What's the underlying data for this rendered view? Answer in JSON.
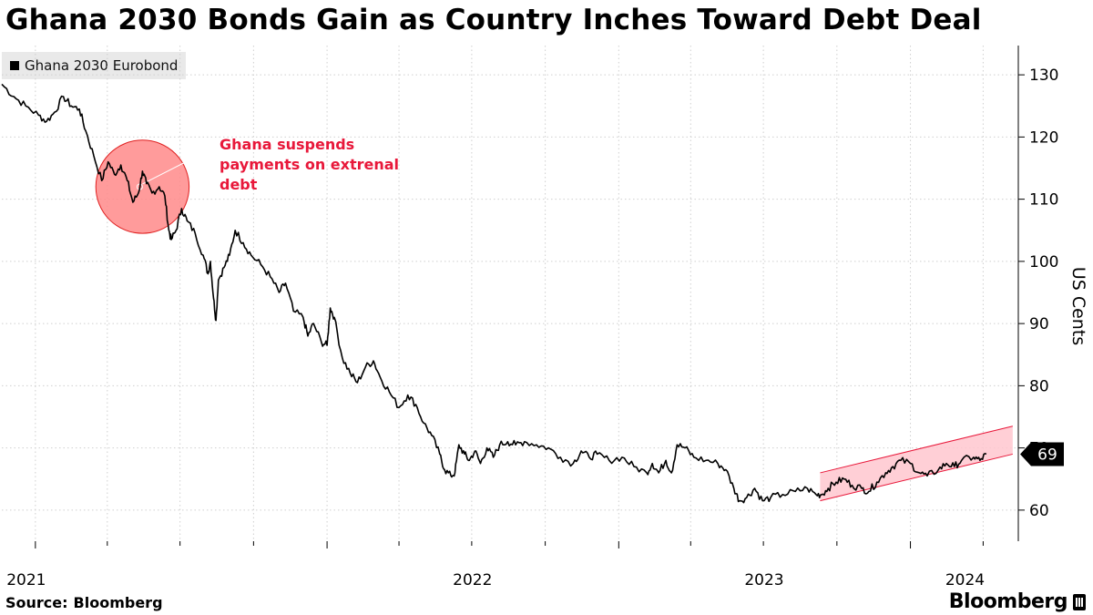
{
  "title": "Ghana 2030 Bonds Gain as Country Inches Toward Debt Deal",
  "source_label": "Source:",
  "source_value": "Bloomberg",
  "brand": "Bloomberg",
  "chart_data": {
    "type": "line",
    "ylabel": "US Cents",
    "ylim": [
      55,
      135
    ],
    "yticks": [
      60,
      70,
      80,
      90,
      100,
      110,
      120,
      130
    ],
    "xlim": [
      "2020-11-20",
      "2024-05-15"
    ],
    "x_tick_years": [
      "2021",
      "2022",
      "2023",
      "2024"
    ],
    "grid": {
      "vertical": true,
      "horizontal": true,
      "style": "dotted"
    },
    "legend": {
      "position": "top-left",
      "entries": [
        "Ghana 2030 Eurobond"
      ]
    },
    "last_value": {
      "label": "69",
      "value": 69
    },
    "series": [
      {
        "name": "Ghana 2030 Eurobond",
        "color": "#000000",
        "points": [
          [
            "2020-11-20",
            128.5
          ],
          [
            "2020-12-05",
            126.5
          ],
          [
            "2020-12-20",
            125.0
          ],
          [
            "2021-01-05",
            123.5
          ],
          [
            "2021-01-15",
            122.5
          ],
          [
            "2021-01-25",
            124.0
          ],
          [
            "2021-02-05",
            126.5
          ],
          [
            "2021-02-15",
            125.0
          ],
          [
            "2021-02-25",
            124.5
          ],
          [
            "2021-03-05",
            121.0
          ],
          [
            "2021-03-15",
            117.0
          ],
          [
            "2021-03-25",
            113.0
          ],
          [
            "2021-04-02",
            116.0
          ],
          [
            "2021-04-10",
            114.0
          ],
          [
            "2021-04-18",
            115.5
          ],
          [
            "2021-04-26",
            113.0
          ],
          [
            "2021-05-03",
            109.5
          ],
          [
            "2021-05-10",
            111.0
          ],
          [
            "2021-05-15",
            114.5
          ],
          [
            "2021-05-20",
            112.5
          ],
          [
            "2021-05-27",
            111.0
          ],
          [
            "2021-06-05",
            112.0
          ],
          [
            "2021-06-12",
            110.5
          ],
          [
            "2021-06-17",
            105.0
          ],
          [
            "2021-06-20",
            103.5
          ],
          [
            "2021-06-26",
            105.0
          ],
          [
            "2021-07-03",
            108.5
          ],
          [
            "2021-07-10",
            106.5
          ],
          [
            "2021-07-20",
            104.5
          ],
          [
            "2021-07-30",
            101.0
          ],
          [
            "2021-08-05",
            98.0
          ],
          [
            "2021-08-08",
            100.0
          ],
          [
            "2021-08-12",
            94.0
          ],
          [
            "2021-08-15",
            90.5
          ],
          [
            "2021-08-18",
            97.0
          ],
          [
            "2021-08-25",
            99.0
          ],
          [
            "2021-09-01",
            101.0
          ],
          [
            "2021-09-08",
            105.0
          ],
          [
            "2021-09-18",
            103.0
          ],
          [
            "2021-09-28",
            101.0
          ],
          [
            "2021-10-10",
            99.5
          ],
          [
            "2021-10-22",
            97.5
          ],
          [
            "2021-11-02",
            95.0
          ],
          [
            "2021-11-10",
            96.5
          ],
          [
            "2021-11-20",
            92.0
          ],
          [
            "2021-12-02",
            91.0
          ],
          [
            "2021-12-08",
            88.0
          ],
          [
            "2021-12-15",
            90.0
          ],
          [
            "2021-12-25",
            87.0
          ],
          [
            "2022-01-01",
            86.5
          ],
          [
            "2022-01-05",
            92.5
          ],
          [
            "2022-01-10",
            91.0
          ],
          [
            "2022-01-20",
            84.5
          ],
          [
            "2022-01-30",
            82.0
          ],
          [
            "2022-02-08",
            80.5
          ],
          [
            "2022-02-18",
            83.0
          ],
          [
            "2022-02-28",
            84.0
          ],
          [
            "2022-03-08",
            81.5
          ],
          [
            "2022-03-20",
            79.0
          ],
          [
            "2022-04-01",
            76.5
          ],
          [
            "2022-04-12",
            78.5
          ],
          [
            "2022-04-22",
            77.0
          ],
          [
            "2022-05-02",
            74.0
          ],
          [
            "2022-05-12",
            72.0
          ],
          [
            "2022-05-22",
            69.0
          ],
          [
            "2022-05-28",
            66.5
          ],
          [
            "2022-06-05",
            65.5
          ],
          [
            "2022-06-10",
            66.0
          ],
          [
            "2022-06-15",
            70.5
          ],
          [
            "2022-06-22",
            69.0
          ],
          [
            "2022-06-28",
            68.0
          ],
          [
            "2022-07-05",
            69.5
          ],
          [
            "2022-07-12",
            67.5
          ],
          [
            "2022-07-20",
            70.0
          ],
          [
            "2022-07-28",
            68.5
          ],
          [
            "2022-08-05",
            70.5
          ],
          [
            "2022-08-15",
            71.0
          ],
          [
            "2022-08-25",
            70.5
          ],
          [
            "2022-09-05",
            71.0
          ],
          [
            "2022-09-20",
            70.5
          ],
          [
            "2022-10-05",
            70.0
          ],
          [
            "2022-10-20",
            68.5
          ],
          [
            "2022-11-05",
            67.5
          ],
          [
            "2022-11-15",
            69.5
          ],
          [
            "2022-11-25",
            68.5
          ],
          [
            "2022-12-05",
            69.0
          ],
          [
            "2022-12-20",
            68.0
          ],
          [
            "2023-01-05",
            68.5
          ],
          [
            "2023-01-20",
            67.0
          ],
          [
            "2023-02-05",
            66.0
          ],
          [
            "2023-02-12",
            67.5
          ],
          [
            "2023-02-20",
            66.0
          ],
          [
            "2023-03-01",
            68.0
          ],
          [
            "2023-03-08",
            66.0
          ],
          [
            "2023-03-15",
            70.5
          ],
          [
            "2023-03-25",
            70.0
          ],
          [
            "2023-04-05",
            68.5
          ],
          [
            "2023-04-20",
            68.0
          ],
          [
            "2023-05-05",
            67.5
          ],
          [
            "2023-05-15",
            66.5
          ],
          [
            "2023-05-25",
            63.5
          ],
          [
            "2023-06-01",
            61.5
          ],
          [
            "2023-06-10",
            62.0
          ],
          [
            "2023-06-20",
            63.5
          ],
          [
            "2023-06-30",
            61.5
          ],
          [
            "2023-07-10",
            62.0
          ],
          [
            "2023-07-25",
            62.5
          ],
          [
            "2023-08-10",
            63.0
          ],
          [
            "2023-08-25",
            63.5
          ],
          [
            "2023-09-05",
            62.5
          ],
          [
            "2023-09-12",
            62.5
          ],
          [
            "2023-09-20",
            63.5
          ],
          [
            "2023-09-30",
            64.5
          ],
          [
            "2023-10-10",
            65.0
          ],
          [
            "2023-10-20",
            64.0
          ],
          [
            "2023-11-01",
            63.5
          ],
          [
            "2023-11-10",
            63.0
          ],
          [
            "2023-11-20",
            64.5
          ],
          [
            "2023-12-01",
            66.0
          ],
          [
            "2023-12-10",
            67.0
          ],
          [
            "2023-12-20",
            68.0
          ],
          [
            "2024-01-01",
            67.5
          ],
          [
            "2024-01-12",
            66.0
          ],
          [
            "2024-01-22",
            65.5
          ],
          [
            "2024-02-05",
            66.5
          ],
          [
            "2024-02-15",
            67.5
          ],
          [
            "2024-02-25",
            67.0
          ],
          [
            "2024-03-05",
            68.0
          ],
          [
            "2024-03-20",
            68.5
          ],
          [
            "2024-03-28",
            68.0
          ],
          [
            "2024-04-05",
            69.0
          ]
        ]
      }
    ],
    "annotations": [
      {
        "type": "circle",
        "text": [
          "Ghana suspends",
          "payments on extrenal",
          "debt"
        ],
        "color": "#e8183a",
        "center": {
          "x": "2021-05-15",
          "y": 112
        },
        "radius_data_y": 7.5
      },
      {
        "type": "channel",
        "color": "#e8183a",
        "fill": "#ffc7cf",
        "start": {
          "x": "2023-09-10",
          "low": 61.5,
          "high": 66.0
        },
        "end": {
          "x": "2024-05-08",
          "low": 69.0,
          "high": 73.5
        }
      }
    ]
  }
}
